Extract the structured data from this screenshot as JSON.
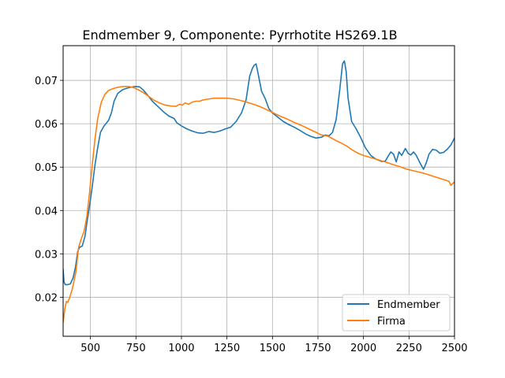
{
  "chart_data": {
    "type": "line",
    "title": "Endmember 9, Componente: Pyrrhotite HS269.1B",
    "xlabel": "",
    "ylabel": "",
    "xlim": [
      350,
      2500
    ],
    "ylim": [
      0.011,
      0.078
    ],
    "xticks": [
      500,
      750,
      1000,
      1250,
      1500,
      1750,
      2000,
      2250,
      2500
    ],
    "yticks": [
      0.02,
      0.03,
      0.04,
      0.05,
      0.06,
      0.07
    ],
    "ytick_labels": [
      "0.02",
      "0.03",
      "0.04",
      "0.05",
      "0.06",
      "0.07"
    ],
    "grid": true,
    "legend_position": "lower-right",
    "series": [
      {
        "name": "Endmember",
        "color": "#1f77b4",
        "points": [
          [
            350,
            0.0265
          ],
          [
            355,
            0.0235
          ],
          [
            362,
            0.0229
          ],
          [
            375,
            0.0229
          ],
          [
            390,
            0.0231
          ],
          [
            405,
            0.0245
          ],
          [
            418,
            0.027
          ],
          [
            430,
            0.0305
          ],
          [
            440,
            0.0315
          ],
          [
            455,
            0.0318
          ],
          [
            470,
            0.034
          ],
          [
            480,
            0.037
          ],
          [
            495,
            0.041
          ],
          [
            510,
            0.0455
          ],
          [
            525,
            0.0505
          ],
          [
            540,
            0.0545
          ],
          [
            555,
            0.058
          ],
          [
            575,
            0.0595
          ],
          [
            600,
            0.0608
          ],
          [
            615,
            0.0625
          ],
          [
            630,
            0.0652
          ],
          [
            650,
            0.067
          ],
          [
            675,
            0.0678
          ],
          [
            700,
            0.0682
          ],
          [
            720,
            0.0684
          ],
          [
            745,
            0.0686
          ],
          [
            770,
            0.0685
          ],
          [
            790,
            0.0678
          ],
          [
            810,
            0.0668
          ],
          [
            840,
            0.0652
          ],
          [
            870,
            0.064
          ],
          [
            900,
            0.0628
          ],
          [
            930,
            0.0618
          ],
          [
            960,
            0.0612
          ],
          [
            975,
            0.0602
          ],
          [
            1000,
            0.0595
          ],
          [
            1030,
            0.0588
          ],
          [
            1060,
            0.0583
          ],
          [
            1090,
            0.0579
          ],
          [
            1120,
            0.0578
          ],
          [
            1150,
            0.0582
          ],
          [
            1180,
            0.058
          ],
          [
            1210,
            0.0583
          ],
          [
            1240,
            0.0588
          ],
          [
            1270,
            0.0592
          ],
          [
            1300,
            0.0605
          ],
          [
            1330,
            0.0625
          ],
          [
            1355,
            0.0655
          ],
          [
            1375,
            0.071
          ],
          [
            1390,
            0.0728
          ],
          [
            1400,
            0.0735
          ],
          [
            1410,
            0.0738
          ],
          [
            1420,
            0.0718
          ],
          [
            1440,
            0.0675
          ],
          [
            1460,
            0.0658
          ],
          [
            1480,
            0.0635
          ],
          [
            1500,
            0.0625
          ],
          [
            1530,
            0.0615
          ],
          [
            1560,
            0.0605
          ],
          [
            1590,
            0.0598
          ],
          [
            1620,
            0.0592
          ],
          [
            1650,
            0.0585
          ],
          [
            1680,
            0.0577
          ],
          [
            1710,
            0.0571
          ],
          [
            1740,
            0.0567
          ],
          [
            1770,
            0.0569
          ],
          [
            1790,
            0.0574
          ],
          [
            1810,
            0.0572
          ],
          [
            1830,
            0.058
          ],
          [
            1850,
            0.061
          ],
          [
            1870,
            0.068
          ],
          [
            1885,
            0.0738
          ],
          [
            1895,
            0.0745
          ],
          [
            1905,
            0.072
          ],
          [
            1915,
            0.066
          ],
          [
            1935,
            0.0605
          ],
          [
            1960,
            0.0588
          ],
          [
            1985,
            0.0568
          ],
          [
            2010,
            0.0545
          ],
          [
            2040,
            0.0527
          ],
          [
            2070,
            0.0518
          ],
          [
            2100,
            0.0513
          ],
          [
            2120,
            0.0514
          ],
          [
            2135,
            0.0525
          ],
          [
            2150,
            0.0535
          ],
          [
            2165,
            0.053
          ],
          [
            2180,
            0.0512
          ],
          [
            2195,
            0.0535
          ],
          [
            2210,
            0.0527
          ],
          [
            2230,
            0.0543
          ],
          [
            2245,
            0.0532
          ],
          [
            2260,
            0.0528
          ],
          [
            2275,
            0.0535
          ],
          [
            2290,
            0.0527
          ],
          [
            2310,
            0.051
          ],
          [
            2330,
            0.0495
          ],
          [
            2345,
            0.051
          ],
          [
            2360,
            0.053
          ],
          [
            2380,
            0.0541
          ],
          [
            2400,
            0.0539
          ],
          [
            2420,
            0.0532
          ],
          [
            2440,
            0.0534
          ],
          [
            2460,
            0.0541
          ],
          [
            2480,
            0.0551
          ],
          [
            2500,
            0.0567
          ]
        ]
      },
      {
        "name": "Firma",
        "color": "#ff7f0e",
        "points": [
          [
            350,
            0.0142
          ],
          [
            360,
            0.0175
          ],
          [
            368,
            0.019
          ],
          [
            375,
            0.0188
          ],
          [
            385,
            0.0198
          ],
          [
            400,
            0.0218
          ],
          [
            420,
            0.0258
          ],
          [
            435,
            0.0315
          ],
          [
            450,
            0.0335
          ],
          [
            465,
            0.0352
          ],
          [
            480,
            0.0385
          ],
          [
            495,
            0.044
          ],
          [
            510,
            0.0505
          ],
          [
            525,
            0.0565
          ],
          [
            540,
            0.0612
          ],
          [
            560,
            0.065
          ],
          [
            580,
            0.0668
          ],
          [
            600,
            0.0677
          ],
          [
            625,
            0.0681
          ],
          [
            650,
            0.0684
          ],
          [
            680,
            0.0686
          ],
          [
            710,
            0.0686
          ],
          [
            740,
            0.0683
          ],
          [
            760,
            0.0679
          ],
          [
            790,
            0.0672
          ],
          [
            820,
            0.0663
          ],
          [
            850,
            0.0654
          ],
          [
            880,
            0.0648
          ],
          [
            910,
            0.0643
          ],
          [
            940,
            0.0641
          ],
          [
            970,
            0.064
          ],
          [
            990,
            0.0645
          ],
          [
            1005,
            0.0643
          ],
          [
            1020,
            0.0648
          ],
          [
            1040,
            0.0645
          ],
          [
            1060,
            0.065
          ],
          [
            1080,
            0.0652
          ],
          [
            1100,
            0.0652
          ],
          [
            1120,
            0.0655
          ],
          [
            1150,
            0.0657
          ],
          [
            1180,
            0.0659
          ],
          [
            1210,
            0.0659
          ],
          [
            1250,
            0.0659
          ],
          [
            1290,
            0.0657
          ],
          [
            1320,
            0.0654
          ],
          [
            1350,
            0.0651
          ],
          [
            1380,
            0.0647
          ],
          [
            1410,
            0.0643
          ],
          [
            1440,
            0.0638
          ],
          [
            1470,
            0.0632
          ],
          [
            1500,
            0.0626
          ],
          [
            1540,
            0.0618
          ],
          [
            1580,
            0.0611
          ],
          [
            1620,
            0.0603
          ],
          [
            1660,
            0.0596
          ],
          [
            1700,
            0.0588
          ],
          [
            1740,
            0.058
          ],
          [
            1770,
            0.0574
          ],
          [
            1800,
            0.0572
          ],
          [
            1820,
            0.0568
          ],
          [
            1850,
            0.0561
          ],
          [
            1880,
            0.0555
          ],
          [
            1910,
            0.0548
          ],
          [
            1940,
            0.0539
          ],
          [
            1970,
            0.0532
          ],
          [
            2000,
            0.0527
          ],
          [
            2040,
            0.0522
          ],
          [
            2080,
            0.0517
          ],
          [
            2120,
            0.0512
          ],
          [
            2160,
            0.0506
          ],
          [
            2200,
            0.0501
          ],
          [
            2240,
            0.0495
          ],
          [
            2270,
            0.0492
          ],
          [
            2300,
            0.0489
          ],
          [
            2330,
            0.0486
          ],
          [
            2360,
            0.0482
          ],
          [
            2390,
            0.0478
          ],
          [
            2420,
            0.0474
          ],
          [
            2450,
            0.047
          ],
          [
            2470,
            0.0467
          ],
          [
            2480,
            0.0458
          ],
          [
            2490,
            0.0462
          ],
          [
            2500,
            0.0466
          ]
        ]
      }
    ]
  }
}
